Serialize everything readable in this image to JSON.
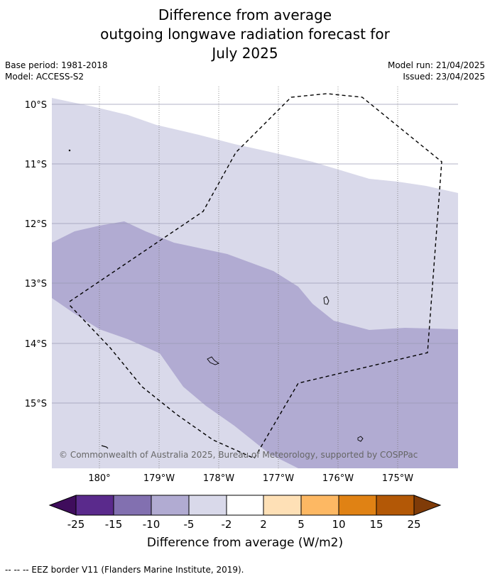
{
  "title": {
    "line1": "Difference from average",
    "line2": "outgoing longwave radiation forecast for",
    "line3": "July 2025"
  },
  "meta_left": {
    "base_period": "Base period: 1981-2018",
    "model": "Model: ACCESS-S2"
  },
  "meta_right": {
    "model_run": "Model run: 21/04/2025",
    "issued": "Issued: 23/04/2025"
  },
  "map": {
    "lat_labels": [
      "10°S",
      "11°S",
      "12°S",
      "13°S",
      "14°S",
      "15°S"
    ],
    "lon_labels": [
      "180°",
      "179°W",
      "178°W",
      "177°W",
      "176°W",
      "175°W"
    ],
    "copyright": "© Commonwealth of Australia 2025, Bureau of Meteorology, supported by COSPPac",
    "colors": {
      "band_minus5_to_minus2": "#d9d9ea",
      "band_minus10_to_minus5": "#b1abd2"
    }
  },
  "colorbar": {
    "labels": [
      "-25",
      "-15",
      "-10",
      "-5",
      "-2",
      "2",
      "5",
      "10",
      "15",
      "25"
    ],
    "colors": [
      "#3f0d5c",
      "#5a2a8c",
      "#8270b0",
      "#b1abd2",
      "#d9d9ea",
      "#ffffff",
      "#fee0b6",
      "#fdb863",
      "#e08214",
      "#b35806",
      "#7f3b08"
    ],
    "label": "Difference from average (W/m2)"
  },
  "footer": {
    "legend": "--  --  -- EEZ border V11 (Flanders Marine Institute, 2019)."
  }
}
